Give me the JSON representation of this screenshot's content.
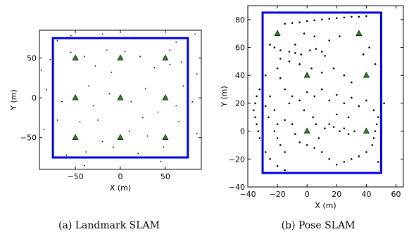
{
  "captions": {
    "left": "(a) Landmark SLAM",
    "right": "(b) Pose SLAM"
  },
  "colors": {
    "frame": "#0000dd",
    "landmark": "#2e7d1e",
    "points": "#000000"
  },
  "chart_data": [
    {
      "type": "scatter",
      "title": "",
      "xlabel": "X (m)",
      "ylabel": "Y (m)",
      "xlim": [
        -90,
        90
      ],
      "ylim": [
        -90,
        85
      ],
      "xticks": [
        -50,
        0,
        50
      ],
      "yticks": [
        -50,
        0,
        50
      ],
      "grid": false,
      "series": [
        {
          "role": "landmarks",
          "marker": "triangle",
          "color": "#2e7d1e",
          "points": [
            [
              -50,
              50
            ],
            [
              0,
              50
            ],
            [
              50,
              50
            ],
            [
              -50,
              0
            ],
            [
              0,
              0
            ],
            [
              50,
              0
            ],
            [
              -50,
              -50
            ],
            [
              0,
              -50
            ],
            [
              50,
              -50
            ]
          ]
        },
        {
          "role": "observations",
          "marker": "dot",
          "color": "#000000",
          "points": [
            [
              -70,
              72
            ],
            [
              -55,
              78
            ],
            [
              -20,
              80
            ],
            [
              15,
              76
            ],
            [
              40,
              75
            ],
            [
              62,
              70
            ],
            [
              83,
              80
            ],
            [
              -88,
              35
            ],
            [
              -78,
              48
            ],
            [
              -55,
              57
            ],
            [
              -40,
              52
            ],
            [
              -28,
              40
            ],
            [
              -10,
              32
            ],
            [
              5,
              58
            ],
            [
              22,
              52
            ],
            [
              38,
              38
            ],
            [
              55,
              60
            ],
            [
              68,
              45
            ],
            [
              85,
              30
            ],
            [
              -82,
              10
            ],
            [
              -65,
              -5
            ],
            [
              -35,
              15
            ],
            [
              -30,
              -10
            ],
            [
              -12,
              5
            ],
            [
              12,
              -5
            ],
            [
              28,
              12
            ],
            [
              42,
              -18
            ],
            [
              62,
              -10
            ],
            [
              80,
              -5
            ],
            [
              -85,
              -40
            ],
            [
              -70,
              -28
            ],
            [
              -45,
              -30
            ],
            [
              -20,
              -55
            ],
            [
              -8,
              -62
            ],
            [
              10,
              -42
            ],
            [
              30,
              -48
            ],
            [
              48,
              -62
            ],
            [
              65,
              -30
            ],
            [
              85,
              -45
            ],
            [
              -60,
              -72
            ],
            [
              -38,
              -68
            ],
            [
              -15,
              -75
            ],
            [
              20,
              -70
            ],
            [
              45,
              -80
            ],
            [
              -40,
              -85
            ],
            [
              55,
              42
            ],
            [
              -15,
              60
            ],
            [
              25,
              -25
            ],
            [
              -25,
              -28
            ],
            [
              70,
              15
            ]
          ]
        },
        {
          "role": "region",
          "marker": "rectangle",
          "color": "#0000dd",
          "bounds": {
            "x": [
              -75,
              75
            ],
            "y": [
              -75,
              75
            ]
          }
        }
      ]
    },
    {
      "type": "scatter",
      "title": "",
      "xlabel": "X (m)",
      "ylabel": "Y (m)",
      "xlim": [
        -40,
        65
      ],
      "ylim": [
        -40,
        90
      ],
      "xticks": [
        -40,
        -20,
        0,
        20,
        40,
        60
      ],
      "yticks": [
        -40,
        -20,
        0,
        20,
        40,
        60,
        80
      ],
      "grid": false,
      "series": [
        {
          "role": "landmarks",
          "marker": "triangle",
          "color": "#2e7d1e",
          "points": [
            [
              -20,
              70
            ],
            [
              35,
              70
            ],
            [
              0,
              40
            ],
            [
              40,
              40
            ],
            [
              0,
              0
            ],
            [
              40,
              0
            ]
          ]
        },
        {
          "role": "map-points",
          "marker": "dot",
          "color": "#000000",
          "points": [
            [
              -5,
              78
            ],
            [
              0,
              79
            ],
            [
              5,
              79.5
            ],
            [
              10,
              80
            ],
            [
              15,
              80.5
            ],
            [
              20,
              81
            ],
            [
              25,
              81.5
            ],
            [
              30,
              82
            ],
            [
              35,
              82
            ],
            [
              40,
              82.5
            ],
            [
              -10,
              77.5
            ],
            [
              -15,
              77
            ],
            [
              -25,
              62
            ],
            [
              -22,
              60
            ],
            [
              -18,
              58
            ],
            [
              -12,
              57
            ],
            [
              -8,
              56
            ],
            [
              -4,
              55
            ],
            [
              2,
              58
            ],
            [
              6,
              59
            ],
            [
              10,
              57
            ],
            [
              12,
              54
            ],
            [
              -30,
              45
            ],
            [
              -28,
              40
            ],
            [
              -30,
              35
            ],
            [
              -32,
              30
            ],
            [
              -34,
              25
            ],
            [
              -35,
              20
            ],
            [
              -36,
              15
            ],
            [
              -35,
              10
            ],
            [
              -34,
              5
            ],
            [
              -33,
              0
            ],
            [
              -32,
              -5
            ],
            [
              -30,
              -10
            ],
            [
              -28,
              -15
            ],
            [
              -25,
              -20
            ],
            [
              -20,
              -25
            ],
            [
              -15,
              -28
            ],
            [
              -10,
              -30
            ],
            [
              -20,
              45
            ],
            [
              -18,
              38
            ],
            [
              -15,
              30
            ],
            [
              -10,
              25
            ],
            [
              -12,
              20
            ],
            [
              -5,
              22
            ],
            [
              0,
              28
            ],
            [
              5,
              25
            ],
            [
              10,
              30
            ],
            [
              15,
              22
            ],
            [
              20,
              26
            ],
            [
              25,
              20
            ],
            [
              30,
              24
            ],
            [
              35,
              18
            ],
            [
              40,
              22
            ],
            [
              45,
              15
            ],
            [
              48,
              10
            ],
            [
              47,
              5
            ],
            [
              46,
              0
            ],
            [
              45,
              -5
            ],
            [
              44,
              -10
            ],
            [
              40,
              -15
            ],
            [
              35,
              -18
            ],
            [
              30,
              -20
            ],
            [
              25,
              -22
            ],
            [
              20,
              -24
            ],
            [
              15,
              -20
            ],
            [
              10,
              -15
            ],
            [
              5,
              -12
            ],
            [
              0,
              -10
            ],
            [
              -5,
              -8
            ],
            [
              -8,
              -2
            ],
            [
              -10,
              5
            ],
            [
              -15,
              8
            ],
            [
              -20,
              5
            ],
            [
              -22,
              0
            ],
            [
              -20,
              -5
            ],
            [
              -18,
              -10
            ],
            [
              -15,
              -15
            ],
            [
              12,
              2
            ],
            [
              15,
              5
            ],
            [
              18,
              3
            ],
            [
              22,
              0
            ],
            [
              25,
              2
            ],
            [
              28,
              -2
            ],
            [
              32,
              0
            ],
            [
              8,
              -5
            ],
            [
              6,
              5
            ],
            [
              4,
              10
            ],
            [
              20,
              12
            ],
            [
              28,
              10
            ],
            [
              -2,
              15
            ],
            [
              -25,
              25
            ],
            [
              -28,
              18
            ],
            [
              -26,
              10
            ],
            [
              -22,
              15
            ],
            [
              50,
              30
            ],
            [
              52,
              20
            ],
            [
              50,
              -15
            ],
            [
              48,
              -22
            ],
            [
              -5,
              48
            ],
            [
              3,
              45
            ],
            [
              10,
              42
            ],
            [
              18,
              45
            ],
            [
              25,
              40
            ],
            [
              30,
              35
            ],
            [
              -12,
              50
            ],
            [
              -18,
              52
            ],
            [
              -8,
              62
            ],
            [
              42,
              60
            ],
            [
              38,
              55
            ],
            [
              46,
              48
            ],
            [
              22,
              68
            ],
            [
              15,
              65
            ],
            [
              5,
              68
            ],
            [
              -2,
              70
            ]
          ]
        },
        {
          "role": "region",
          "marker": "rectangle",
          "color": "#0000dd",
          "bounds": {
            "x": [
              -30,
              50
            ],
            "y": [
              -30,
              85
            ]
          }
        }
      ]
    }
  ]
}
